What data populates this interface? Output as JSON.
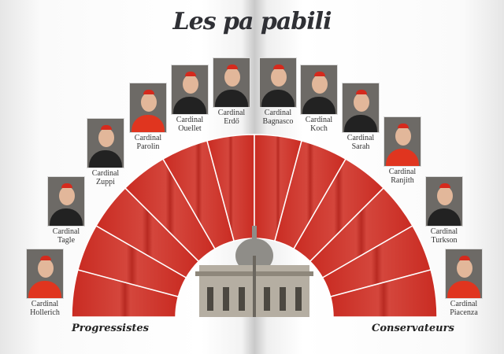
{
  "title": "Les pa pabili",
  "labels": {
    "left": "Progressistes",
    "right": "Conservateurs"
  },
  "colors": {
    "segment": "#cf3329",
    "divider": "#ffffff"
  },
  "cardinals": [
    {
      "line1": "Cardinal",
      "line2": "Hollerich",
      "robe": "red"
    },
    {
      "line1": "Cardinal",
      "line2": "Tagle",
      "robe": "black"
    },
    {
      "line1": "Cardinal",
      "line2": "Zuppi",
      "robe": "black"
    },
    {
      "line1": "Cardinal",
      "line2": "Parolin",
      "robe": "red"
    },
    {
      "line1": "Cardinal",
      "line2": "Ouellet",
      "robe": "black"
    },
    {
      "line1": "Cardinal",
      "line2": "Erdő",
      "robe": "black"
    },
    {
      "line1": "Cardinal",
      "line2": "Bagnasco",
      "robe": "black"
    },
    {
      "line1": "Cardinal",
      "line2": "Koch",
      "robe": "black"
    },
    {
      "line1": "Cardinal",
      "line2": "Sarah",
      "robe": "black"
    },
    {
      "line1": "Cardinal",
      "line2": "Ranjith",
      "robe": "red"
    },
    {
      "line1": "Cardinal",
      "line2": "Turkson",
      "robe": "black"
    },
    {
      "line1": "Cardinal",
      "line2": "Piacenza",
      "robe": "red"
    }
  ]
}
